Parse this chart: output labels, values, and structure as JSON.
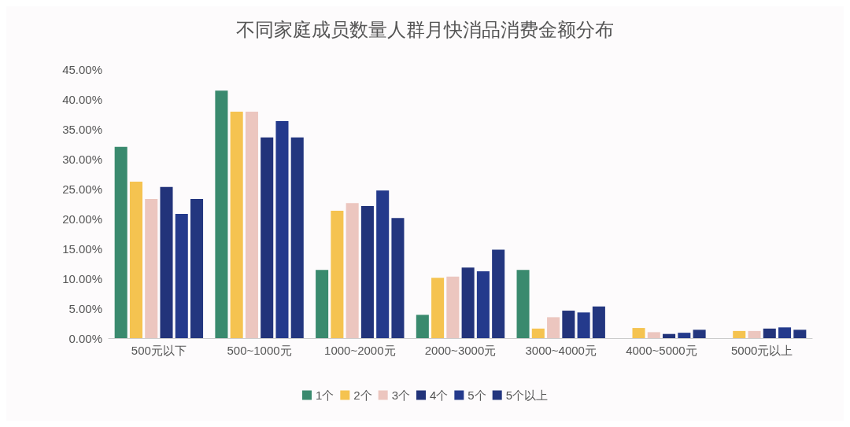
{
  "chart_data": {
    "type": "bar",
    "title": "不同家庭成员数量人群月快消品消费金额分布",
    "categories": [
      "500元以下",
      "500~1000元",
      "1000~2000元",
      "2000~3000元",
      "3000~4000元",
      "4000~5000元",
      "5000元以上"
    ],
    "series": [
      {
        "name": "1个",
        "color": "#3a8a6e",
        "values": [
          32.0,
          41.4,
          11.4,
          3.9,
          11.4,
          0,
          0
        ]
      },
      {
        "name": "2个",
        "color": "#f5c350",
        "values": [
          26.2,
          37.9,
          21.3,
          10.1,
          1.6,
          1.7,
          1.2
        ]
      },
      {
        "name": "3个",
        "color": "#ecc6bf",
        "values": [
          23.3,
          37.9,
          22.6,
          10.3,
          3.5,
          1.0,
          1.2
        ]
      },
      {
        "name": "4个",
        "color": "#22337a",
        "values": [
          25.3,
          33.6,
          22.1,
          11.8,
          4.6,
          0.7,
          1.6
        ]
      },
      {
        "name": "5个",
        "color": "#243a8c",
        "values": [
          20.8,
          36.3,
          24.7,
          11.2,
          4.3,
          0.9,
          1.8
        ]
      },
      {
        "name": "5个以上",
        "color": "#23367f",
        "values": [
          23.3,
          33.6,
          20.1,
          14.8,
          5.3,
          1.4,
          1.4
        ]
      }
    ],
    "ylim": [
      0,
      45
    ],
    "yticks": [
      {
        "value": 0,
        "label": "0.00%"
      },
      {
        "value": 5,
        "label": "5.00%"
      },
      {
        "value": 10,
        "label": "10.00%"
      },
      {
        "value": 15,
        "label": "15.00%"
      },
      {
        "value": 20,
        "label": "20.00%"
      },
      {
        "value": 25,
        "label": "25.00%"
      },
      {
        "value": 30,
        "label": "30.00%"
      },
      {
        "value": 35,
        "label": "35.00%"
      },
      {
        "value": 40,
        "label": "40.00%"
      },
      {
        "value": 45,
        "label": "45.00%"
      }
    ],
    "grid": false,
    "legend": "bottom"
  }
}
